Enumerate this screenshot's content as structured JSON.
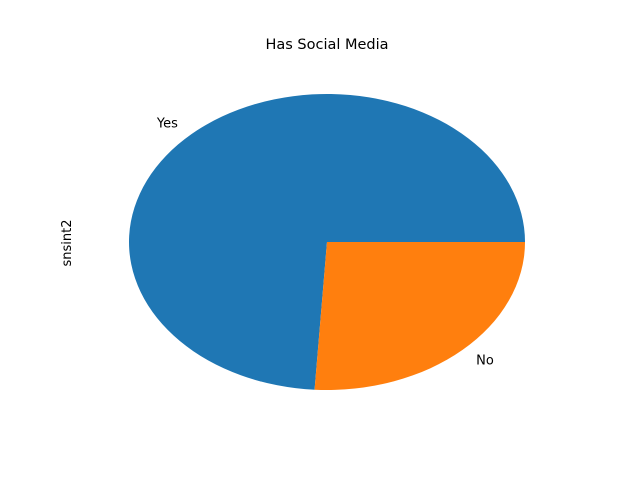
{
  "chart_data": {
    "type": "pie",
    "title": "Has Social Media",
    "ylabel": "snsint2",
    "slices": [
      {
        "label": "Yes",
        "value": 74,
        "color": "#1f77b4"
      },
      {
        "label": "No",
        "value": 26,
        "color": "#ff7f0e"
      }
    ],
    "start_angle_deg": 0,
    "direction": "counterclockwise",
    "legend": "none"
  }
}
